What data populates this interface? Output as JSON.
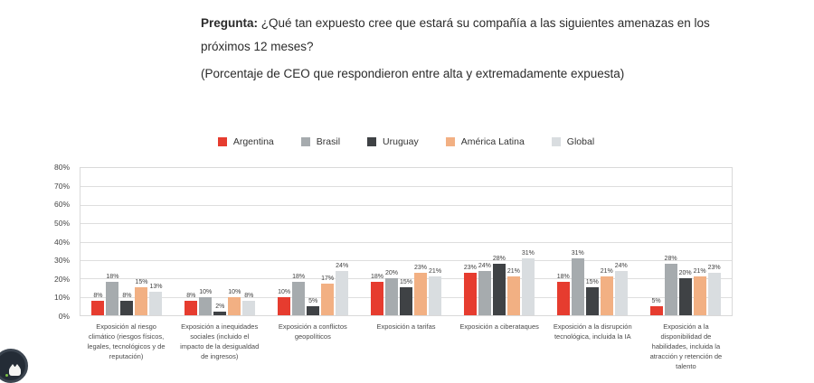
{
  "header": {
    "question_label": "Pregunta:",
    "question_text": " ¿Qué tan expuesto cree que estará su compañía a las siguientes amenazas en los próximos 12 meses?",
    "subtitle": "(Porcentaje de CEO que respondieron entre alta y extremadamente expuesta)"
  },
  "colors": {
    "argentina": "#e63c2f",
    "brasil": "#a6abae",
    "uruguay": "#3f4245",
    "america_latina": "#f2b083",
    "global": "#d9dde0",
    "grid": "#dedede"
  },
  "chart_data": {
    "type": "bar",
    "title": "",
    "xlabel": "",
    "ylabel": "",
    "ylim": [
      0,
      80
    ],
    "grid": true,
    "legend_position": "top",
    "value_label_suffix": "%",
    "yticks": [
      "80%",
      "70%",
      "60%",
      "50%",
      "40%",
      "30%",
      "20%",
      "10%",
      "0%"
    ],
    "categories": [
      "Exposición al riesgo climático (riesgos físicos, legales, tecnológicos y de reputación)",
      "Exposición a inequidades sociales (incluido el impacto de la desigualdad de ingresos)",
      "Exposición a conflictos geopolíticos",
      "Exposición a tarifas",
      "Exposición a ciberataques",
      "Exposición a la disrupción tecnológica, incluida la IA",
      "Exposición a la disponibilidad de habilidades, incluida la atracción y retención de talento"
    ],
    "series": [
      {
        "name": "Argentina",
        "color": "#e63c2f",
        "values": [
          8,
          8,
          10,
          18,
          23,
          18,
          5
        ]
      },
      {
        "name": "Brasil",
        "color": "#a6abae",
        "values": [
          18,
          10,
          18,
          20,
          24,
          31,
          28
        ]
      },
      {
        "name": "Uruguay",
        "color": "#3f4245",
        "values": [
          8,
          2,
          5,
          15,
          28,
          15,
          20
        ]
      },
      {
        "name": "América Latina",
        "color": "#f2b083",
        "values": [
          15,
          10,
          17,
          23,
          21,
          21,
          21
        ]
      },
      {
        "name": "Global",
        "color": "#d9dde0",
        "values": [
          13,
          8,
          24,
          21,
          31,
          24,
          23
        ]
      }
    ]
  },
  "widget": {
    "label": "chat-widget",
    "status_color": "#7ac143"
  }
}
